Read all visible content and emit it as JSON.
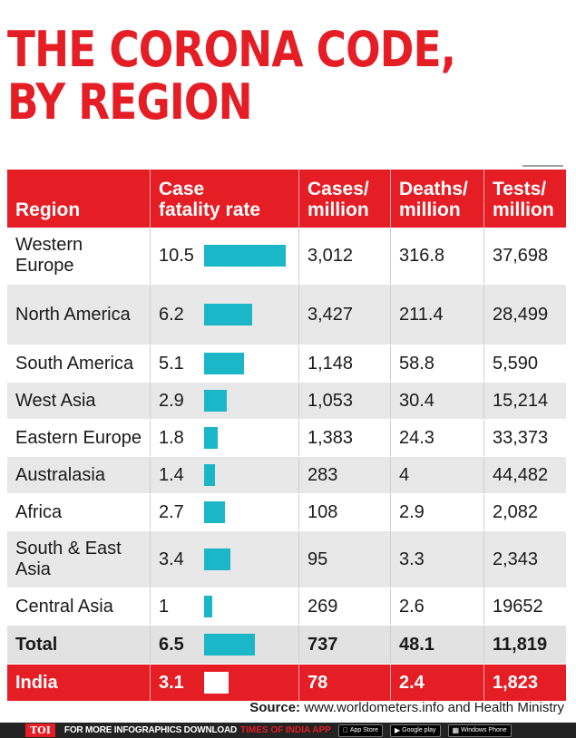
{
  "title": {
    "line1": "THE CORONA CODE,",
    "line2": "BY REGION"
  },
  "headers": {
    "region": "Region",
    "cfr_line1": "Case",
    "cfr_line2": "fatality rate",
    "cases_line1": "Cases/",
    "cases_line2": "million",
    "deaths_line1": "Deaths/",
    "deaths_line2": "million",
    "tests_line1": "Tests/",
    "tests_line2": "million"
  },
  "colors": {
    "accent_red": "#e51d25",
    "bar_teal": "#1bb6c8",
    "row_gray": "#e8e8e8"
  },
  "chart_data": {
    "type": "table",
    "bar_max": 10.5,
    "columns": [
      "Region",
      "Case fatality rate",
      "Cases/ million",
      "Deaths/ million",
      "Tests/ million"
    ],
    "rows": [
      {
        "region_line1": "Western",
        "region_line2": "Europe",
        "cfr": "10.5",
        "cases": "3,012",
        "deaths": "316.8",
        "tests": "37,698"
      },
      {
        "region_line1": "North America",
        "region_line2": "",
        "cfr": "6.2",
        "cases": "3,427",
        "deaths": "211.4",
        "tests": "28,499"
      },
      {
        "region_line1": "South America",
        "region_line2": "",
        "cfr": "5.1",
        "cases": "1,148",
        "deaths": "58.8",
        "tests": "5,590"
      },
      {
        "region_line1": "West Asia",
        "region_line2": "",
        "cfr": "2.9",
        "cases": "1,053",
        "deaths": "30.4",
        "tests": "15,214"
      },
      {
        "region_line1": "Eastern Europe",
        "region_line2": "",
        "cfr": "1.8",
        "cases": "1,383",
        "deaths": "24.3",
        "tests": "33,373"
      },
      {
        "region_line1": "Australasia",
        "region_line2": "",
        "cfr": "1.4",
        "cases": "283",
        "deaths": "4",
        "tests": "44,482"
      },
      {
        "region_line1": "Africa",
        "region_line2": "",
        "cfr": "2.7",
        "cases": "108",
        "deaths": "2.9",
        "tests": "2,082"
      },
      {
        "region_line1": "South & East",
        "region_line2": "Asia",
        "cfr": "3.4",
        "cases": "95",
        "deaths": "3.3",
        "tests": "2,343"
      },
      {
        "region_line1": "Central Asia",
        "region_line2": "",
        "cfr": "1",
        "cases": "269",
        "deaths": "2.6",
        "tests": "19652"
      },
      {
        "region_line1": "Total",
        "region_line2": "",
        "cfr": "6.5",
        "cases": "737",
        "deaths": "48.1",
        "tests": "11,819"
      },
      {
        "region_line1": "India",
        "region_line2": "",
        "cfr": "3.1",
        "cases": "78",
        "deaths": "2.4",
        "tests": "1,823"
      }
    ]
  },
  "source": {
    "label": "Source:",
    "text": " www.worldometers.info and Health Ministry"
  },
  "footer": {
    "logo": "TOI",
    "promo": "FOR MORE  INFOGRAPHICS DOWNLOAD",
    "promo_app": "TIMES OF INDIA APP",
    "app_store": "App Store",
    "google_play": "Google play",
    "windows": "Windows Phone"
  }
}
